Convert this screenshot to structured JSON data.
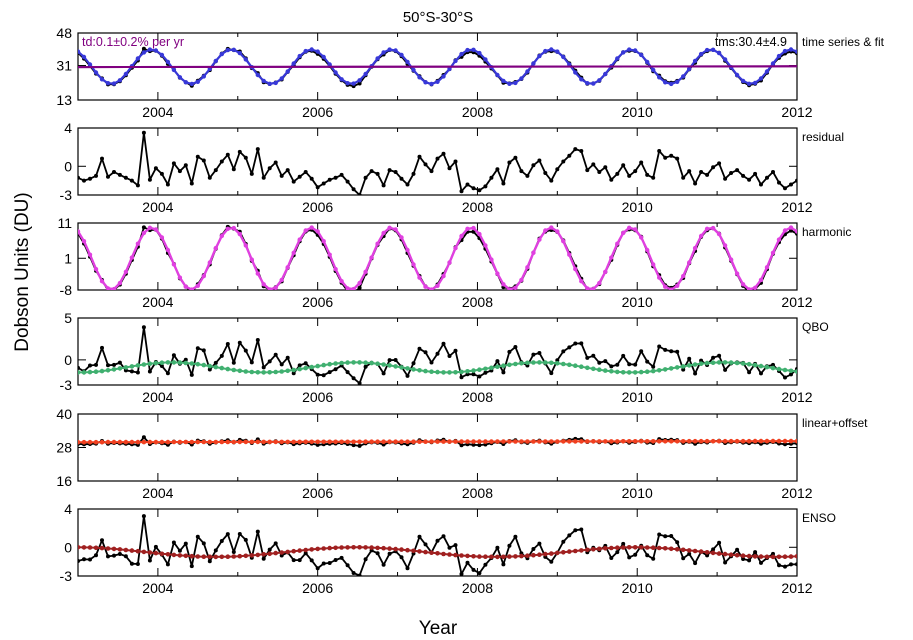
{
  "title": "50°S-30°S",
  "ylabel": "Dobson Units (DU)",
  "xlabel": "Year",
  "chart_data": [
    {
      "type": "line",
      "label": "time series & fit",
      "xlim": [
        2003.0,
        2012.0
      ],
      "ylim": [
        13,
        48
      ],
      "yticks": [
        "13",
        "31",
        "48"
      ],
      "xticks": [
        "2004",
        "2006",
        "2008",
        "2010",
        "2012"
      ],
      "annotations": [
        {
          "text": "td:0.1±0.2% per yr",
          "color": "#800080",
          "position": "top-left"
        },
        {
          "text": "tms:30.4±4.9",
          "color": "#000000",
          "position": "top-right"
        }
      ],
      "model": {
        "mean": 30.4,
        "amplitude": 9.0,
        "phase": 0.92
      },
      "series": [
        {
          "role": "data",
          "color": "#000000",
          "markers": true
        },
        {
          "role": "fit",
          "color": "#3838d8",
          "markers": true
        },
        {
          "role": "trend",
          "color": "#800080",
          "value_start": 30.2,
          "value_end": 30.6
        }
      ]
    },
    {
      "type": "line",
      "label": "residual",
      "xlim": [
        2003.0,
        2012.0
      ],
      "ylim": [
        -3,
        4
      ],
      "yticks": [
        "-3",
        "0",
        "4"
      ],
      "xticks": [
        "2004",
        "2006",
        "2008",
        "2010",
        "2012"
      ],
      "residual_values": [
        -1.2,
        -1.5,
        -1.3,
        -1.0,
        0.8,
        -1.1,
        -0.6,
        -0.9,
        -1.2,
        -1.5,
        -2.0,
        3.5,
        -1.4,
        -0.2,
        -0.8,
        -1.9,
        0.3,
        -0.5,
        0.1,
        -1.8,
        1.0,
        0.6,
        -1.2,
        -0.4,
        0.5,
        1.2,
        -0.3,
        1.5,
        0.9,
        -0.8,
        1.8,
        -1.2,
        -0.2,
        0.4,
        -1.0,
        -0.4,
        -1.6,
        -1.1,
        -0.6,
        -1.3,
        -2.2,
        -1.8,
        -1.4,
        -1.2,
        -0.9,
        -1.6,
        -2.4,
        -3.0,
        -1.2,
        -0.5,
        -0.8,
        -2.0,
        -0.4,
        -0.6,
        -1.3,
        -1.9,
        -0.8,
        1.0,
        0.2,
        -0.5,
        0.8,
        1.3,
        -0.2,
        0.5,
        -2.6,
        -1.9,
        -2.3,
        -2.5,
        -2.1,
        -1.2,
        -0.3,
        -1.8,
        0.4,
        0.9,
        -0.5,
        -1.0,
        0.1,
        0.6,
        -0.7,
        -1.5,
        -0.3,
        0.5,
        1.1,
        1.8,
        1.6,
        -0.4,
        0.2,
        -0.6,
        -0.1,
        -1.4,
        -0.8,
        0.1,
        -1.0,
        -0.5,
        0.4,
        -0.9,
        -1.2,
        1.6,
        0.9,
        1.1,
        0.8,
        -1.2,
        -0.5,
        -1.8,
        -0.6,
        -0.9,
        -0.1,
        0.3,
        -1.3,
        -0.7,
        -0.4,
        -1.0,
        -1.4,
        -0.8,
        -1.9,
        -1.2,
        -0.6,
        -1.7,
        -2.3,
        -1.9,
        -1.5,
        -1.0,
        -0.8
      ],
      "series": [
        {
          "role": "data",
          "color": "#000000",
          "markers": true
        }
      ]
    },
    {
      "type": "line",
      "label": "harmonic",
      "xlim": [
        2003.0,
        2012.0
      ],
      "ylim": [
        -8,
        11
      ],
      "yticks": [
        "-8",
        "1",
        "11"
      ],
      "xticks": [
        "2004",
        "2006",
        "2008",
        "2010",
        "2012"
      ],
      "model": {
        "mean": 0.9,
        "amplitude": 8.8,
        "phase": 0.92
      },
      "series": [
        {
          "role": "data",
          "color": "#000000",
          "markers": true
        },
        {
          "role": "fit",
          "color": "#e040e0",
          "markers": true
        }
      ]
    },
    {
      "type": "line",
      "label": "QBO",
      "xlim": [
        2003.0,
        2012.0
      ],
      "ylim": [
        -3,
        5
      ],
      "yticks": [
        "-3",
        "0",
        "5"
      ],
      "xticks": [
        "2004",
        "2006",
        "2008",
        "2010",
        "2012"
      ],
      "model": {
        "mean": -0.9,
        "amplitude": 0.6,
        "period": 2.3,
        "phase": 0.3
      },
      "series": [
        {
          "role": "data",
          "color": "#000000",
          "markers": true
        },
        {
          "role": "fit",
          "color": "#40b070",
          "markers": true
        }
      ]
    },
    {
      "type": "line",
      "label": "linear+offset",
      "xlim": [
        2003.0,
        2012.0
      ],
      "ylim": [
        16,
        40
      ],
      "yticks": [
        "16",
        "28",
        "40"
      ],
      "xticks": [
        "2004",
        "2006",
        "2008",
        "2010",
        "2012"
      ],
      "model": {
        "offset": 30.1
      },
      "series": [
        {
          "role": "data",
          "color": "#000000",
          "markers": true
        },
        {
          "role": "fit",
          "color": "#f04020",
          "markers": true,
          "value_start": 29.9,
          "value_end": 30.3
        }
      ]
    },
    {
      "type": "line",
      "label": "ENSO",
      "xlim": [
        2003.0,
        2012.0
      ],
      "ylim": [
        -3,
        4
      ],
      "yticks": [
        "-3",
        "0",
        "4"
      ],
      "xticks": [
        "2004",
        "2006",
        "2008",
        "2010",
        "2012"
      ],
      "model": {
        "mean": -0.5,
        "amplitude": 0.5,
        "period": 3.5,
        "phase": 0.1
      },
      "series": [
        {
          "role": "data",
          "color": "#000000",
          "markers": true
        },
        {
          "role": "fit",
          "color": "#a02020",
          "markers": true
        }
      ]
    }
  ]
}
